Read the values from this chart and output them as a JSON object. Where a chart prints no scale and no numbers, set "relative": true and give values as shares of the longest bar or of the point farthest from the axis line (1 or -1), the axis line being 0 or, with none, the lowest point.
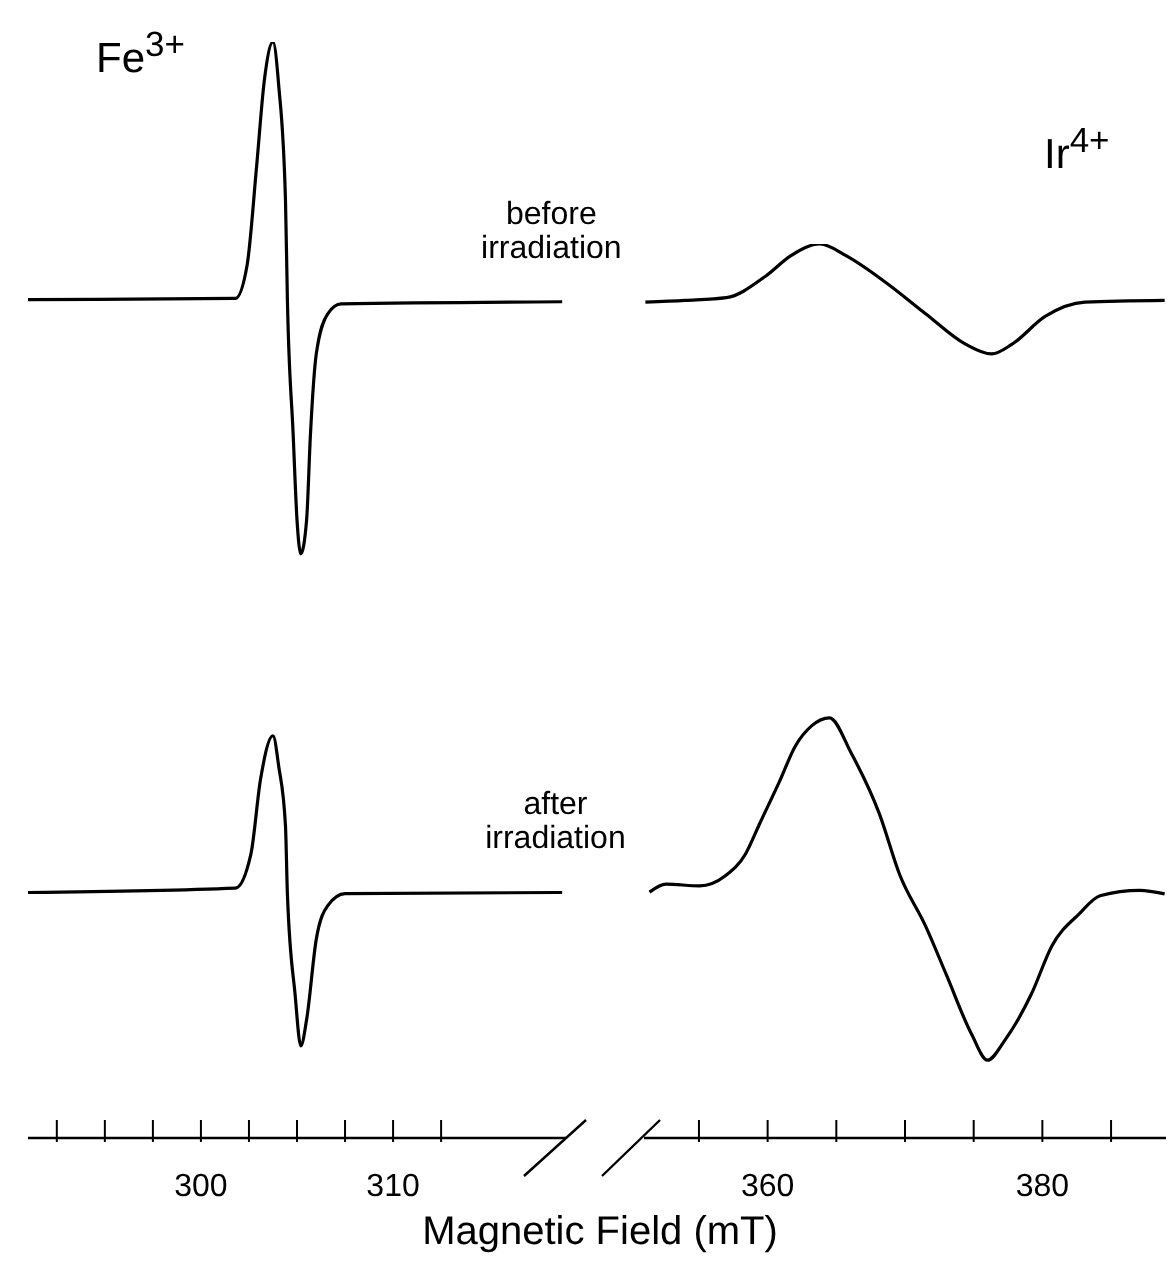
{
  "chart_data": [
    {
      "type": "line",
      "relative": true,
      "annotations": [
        "Fe$^{3+}$"
      ],
      "xlim": [
        291,
        319
      ],
      "xticks": [
        {
          "value": 292.5,
          "label": null
        },
        {
          "value": 295,
          "label": null
        },
        {
          "value": 297.5,
          "label": null
        },
        300,
        {
          "value": 302.5,
          "label": null
        },
        {
          "value": 305,
          "label": null
        },
        {
          "value": 307.5,
          "label": null
        },
        310,
        {
          "value": 312.5,
          "label": null
        }
      ],
      "series": [
        {
          "color": "#000000",
          "x": [
            291.0,
            301.8,
            302.4,
            302.9,
            303.3,
            303.75,
            304.05,
            304.4,
            304.5,
            304.8,
            305.0,
            305.2,
            305.5,
            305.7,
            306.0,
            306.6,
            307.3,
            318.8
          ],
          "values": [
            0.765,
            0.766,
            0.796,
            0.887,
            0.965,
            1.0,
            0.96,
            0.856,
            0.765,
            0.642,
            0.564,
            0.533,
            0.564,
            0.642,
            0.715,
            0.752,
            0.761,
            0.763
          ]
        },
        {
          "color": "#000000",
          "x": [
            291.0,
            301.8,
            302.6,
            303.1,
            303.75,
            304.05,
            304.4,
            304.5,
            304.9,
            305.2,
            305.5,
            306.0,
            306.6,
            307.5,
            318.8
          ],
          "values": [
            0.224,
            0.228,
            0.259,
            0.327,
            0.367,
            0.339,
            0.285,
            0.223,
            0.131,
            0.084,
            0.108,
            0.181,
            0.212,
            0.223,
            0.224
          ]
        }
      ]
    },
    {
      "type": "line",
      "relative": true,
      "xlabel": "Magnetic Field (mT)",
      "annotations": [
        "Ir$^{4+}$"
      ],
      "xlim": [
        351,
        389
      ],
      "xticks": [
        {
          "value": 355,
          "label": null
        },
        360,
        {
          "value": 365,
          "label": null
        },
        {
          "value": 370,
          "label": null
        },
        {
          "value": 375,
          "label": null
        },
        380,
        {
          "value": 385,
          "label": null
        }
      ],
      "series": [
        {
          "name": "before irradiation",
          "color": "#000000",
          "x": [
            351.1,
            354.0,
            357.0,
            359.85,
            361.7,
            363.8,
            365.7,
            368.6,
            371.5,
            374.4,
            376.3,
            377.8,
            380.2,
            383.1,
            388.9
          ],
          "values": [
            0.935,
            0.937,
            0.94,
            0.964,
            0.987,
            1.0,
            0.987,
            0.957,
            0.922,
            0.888,
            0.877,
            0.888,
            0.919,
            0.935,
            0.937
          ]
        },
        {
          "name": "after irradiation",
          "color": "#000000",
          "x": [
            351.4,
            352.6,
            355.05,
            356.9,
            358.4,
            359.4,
            360.9,
            362.0,
            363.2,
            364.5,
            366.1,
            368.15,
            369.6,
            371.5,
            373.0,
            374.85,
            376.0,
            377.3,
            379.2,
            380.7,
            382.7,
            384.2,
            387.1,
            388.9
          ],
          "values": [
            0.275,
            0.284,
            0.282,
            0.293,
            0.318,
            0.351,
            0.4,
            0.438,
            0.461,
            0.47,
            0.43,
            0.362,
            0.295,
            0.237,
            0.183,
            0.116,
            0.087,
            0.11,
            0.161,
            0.215,
            0.251,
            0.271,
            0.277,
            0.273
          ]
        }
      ]
    }
  ]
}
